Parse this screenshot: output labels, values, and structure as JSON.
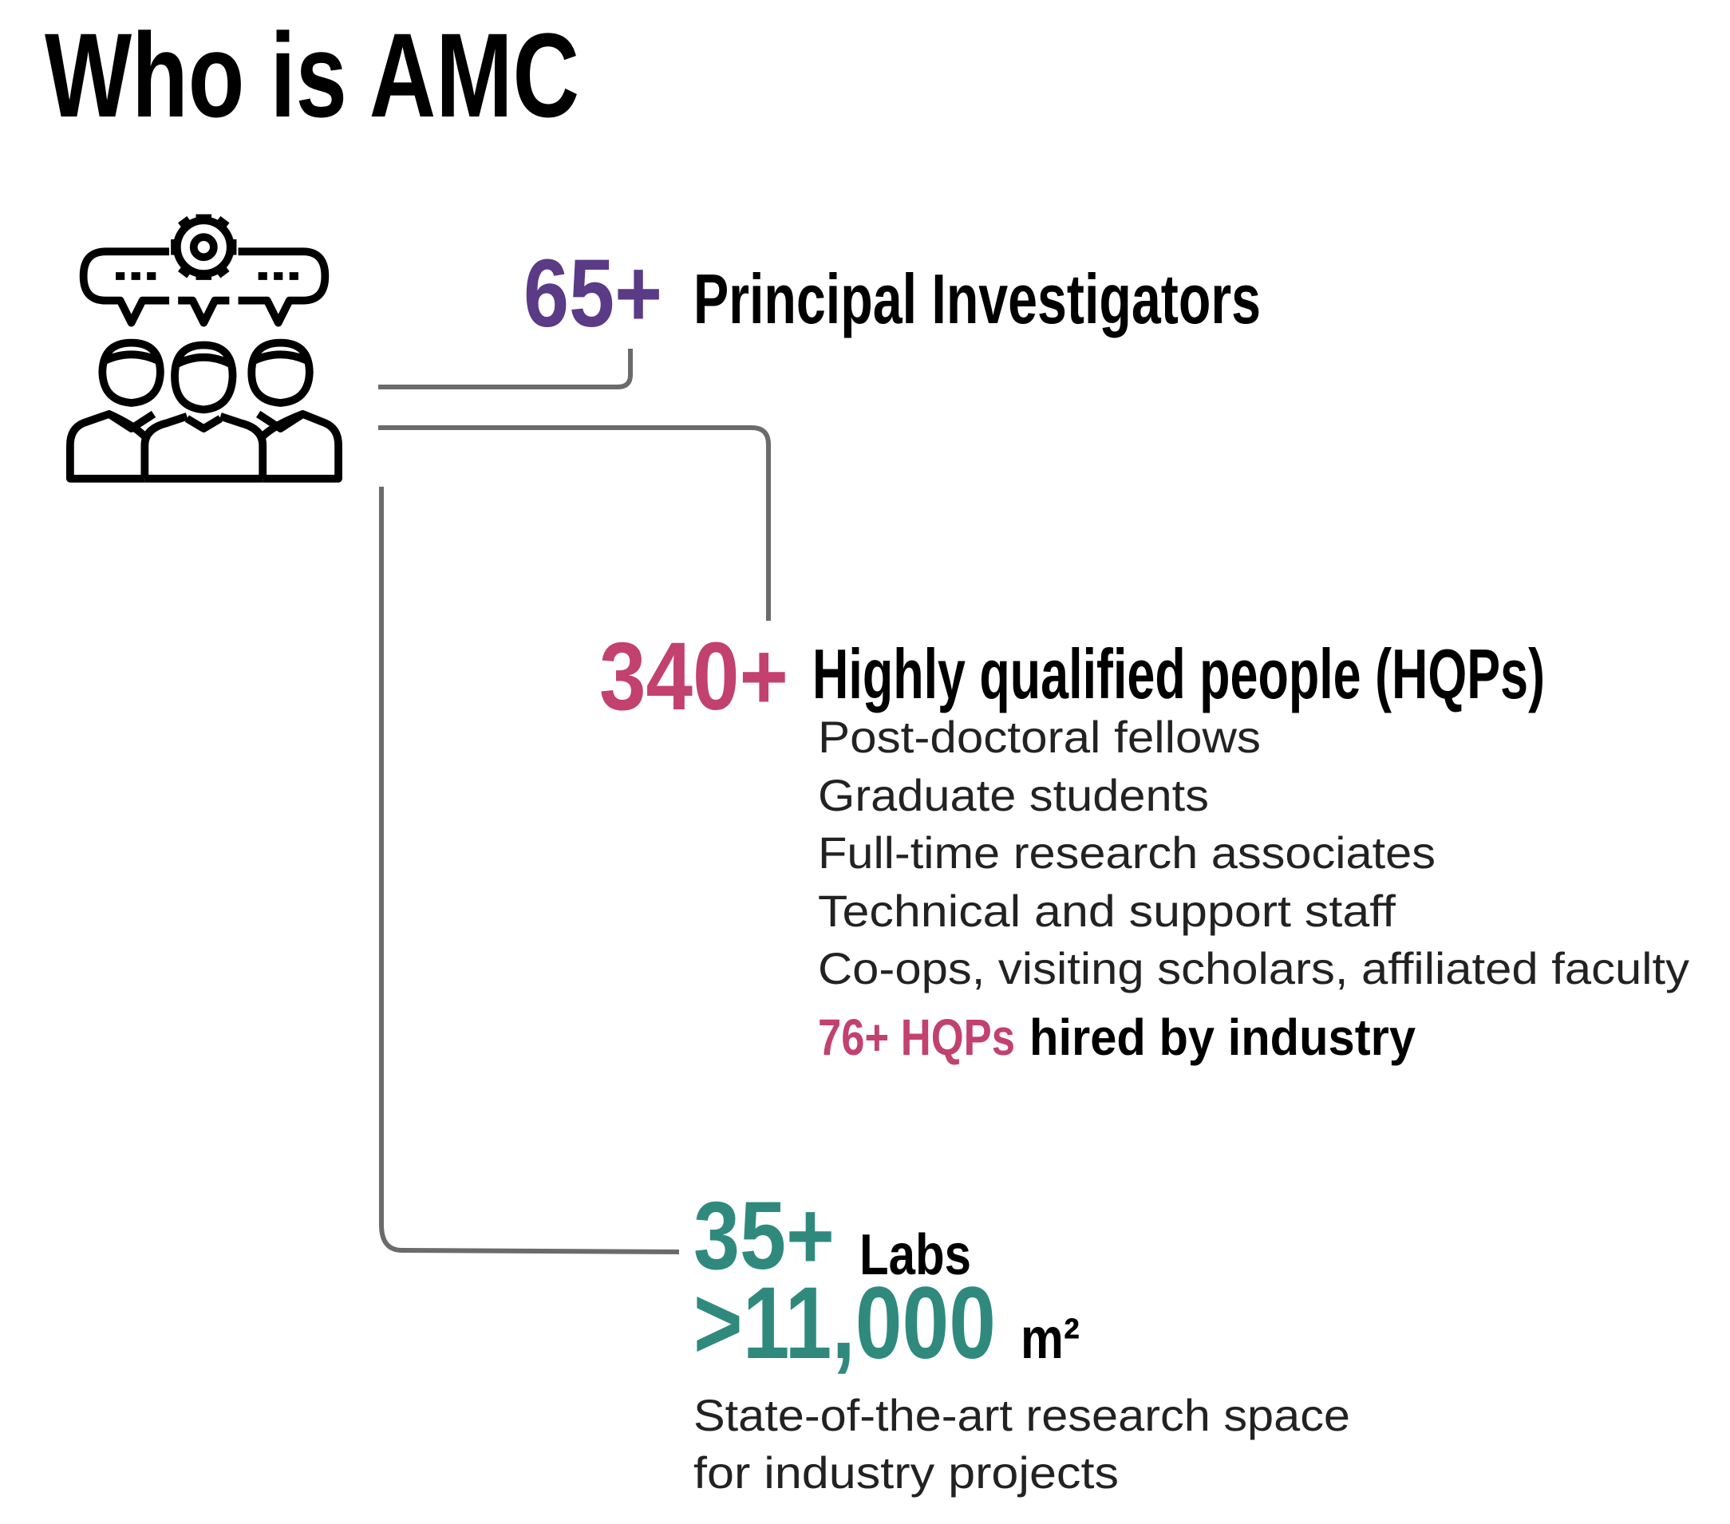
{
  "title": "Who is AMC",
  "sections": [
    {
      "number": "65+",
      "label": "Principal Investigators"
    },
    {
      "number": "340+",
      "label": "Highly qualified people (HQPs)",
      "items": [
        "Post-doctoral fellows",
        "Graduate students",
        "Full-time research associates",
        "Technical and support staff",
        "Co-ops, visiting scholars, affiliated faculty"
      ],
      "highlight": {
        "number": "76+ HQPs",
        "text": "hired by industry"
      }
    },
    {
      "number": "35+",
      "label": "Labs",
      "area": ">11,000",
      "unit": "m²",
      "description": [
        "State-of-the-art research space",
        "for industry projects"
      ]
    }
  ]
}
